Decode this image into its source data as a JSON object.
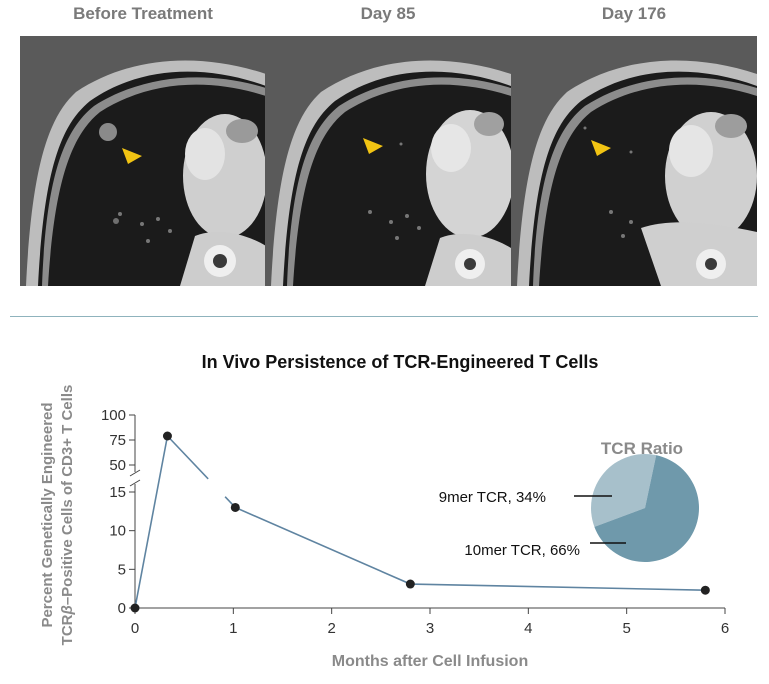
{
  "panels": [
    {
      "label": "Before Treatment",
      "has_nodule": true
    },
    {
      "label": "Day 85",
      "has_nodule": false
    },
    {
      "label": "Day 176",
      "has_nodule": false
    }
  ],
  "colors": {
    "line": "#5f84a1",
    "marker": "#222222",
    "arrow": "#f2c413",
    "pie_9mer": "#a7c0cb",
    "pie_10mer": "#6f99ab",
    "divider": "#8fb3bd"
  },
  "chart_data": [
    {
      "type": "line",
      "title": "In Vivo Persistence of TCR-Engineered T Cells",
      "xlabel": "Months after Cell Infusion",
      "ylabel_line1": "Percent Genetically Engineered",
      "ylabel_line2_prefix": "TCR",
      "ylabel_line2_beta": "β",
      "ylabel_line2_suffix": "–Positive Cells of CD3+ T Cells",
      "x_ticks": [
        "0",
        "1",
        "2",
        "3",
        "4",
        "5",
        "6"
      ],
      "y_ticks_lower": [
        "0",
        "5",
        "10",
        "15"
      ],
      "y_ticks_upper": [
        "50",
        "75",
        "100"
      ],
      "xlim": [
        0,
        6
      ],
      "ylim_lower": [
        0,
        15
      ],
      "ylim_upper": [
        50,
        100
      ],
      "axis_break": true,
      "grid": false,
      "series": [
        {
          "x": [
            0,
            0.33,
            1.02,
            2.8,
            5.8
          ],
          "y": [
            0,
            79,
            13,
            3.1,
            2.3
          ]
        }
      ]
    },
    {
      "type": "pie",
      "title": "TCR Ratio",
      "labels": [
        "9mer TCR, 34%",
        "10mer TCR, 66%"
      ],
      "values": [
        34,
        66
      ]
    }
  ]
}
